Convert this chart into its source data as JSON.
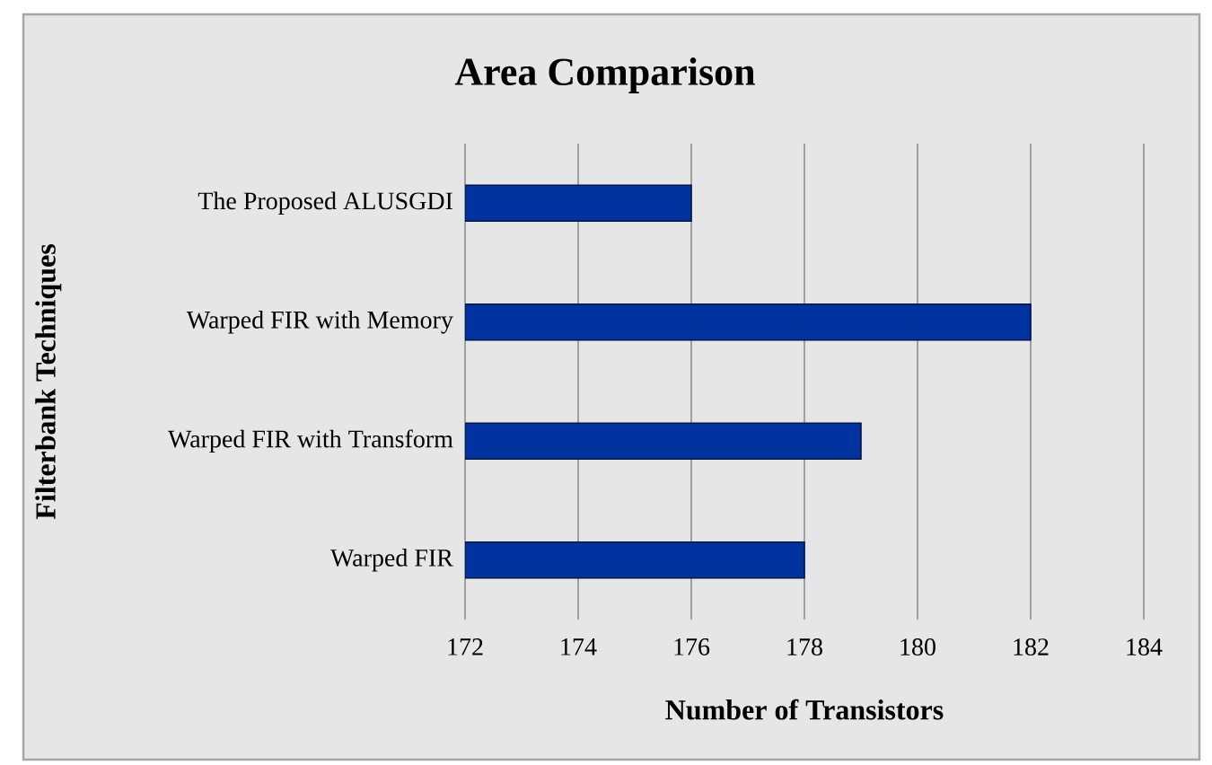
{
  "chart_data": {
    "type": "bar",
    "orientation": "horizontal",
    "title": "Area Comparison",
    "xlabel": "Number of Transistors",
    "ylabel": "Filterbank Techniques",
    "categories": [
      "The Proposed ALUSGDI",
      "Warped FIR with Memory",
      "Warped FIR with Transform",
      "Warped FIR"
    ],
    "values": [
      176,
      182,
      179,
      178
    ],
    "color": "#0033a0",
    "xlim": [
      172,
      184
    ],
    "xticks": [
      172,
      174,
      176,
      178,
      180,
      182,
      184
    ],
    "grid": "x"
  }
}
